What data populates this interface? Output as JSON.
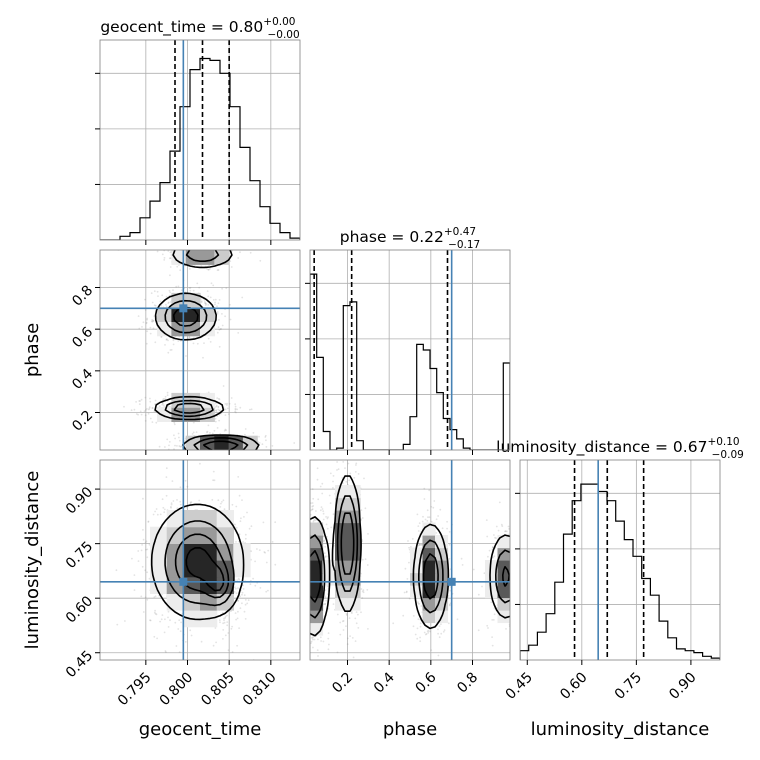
{
  "chart_data": {
    "type": "corner",
    "parameters": [
      {
        "key": "geocent_time",
        "label": "geocent_time",
        "range": [
          0.7895,
          0.8135
        ],
        "ticks": [
          0.795,
          0.8,
          0.805,
          0.81
        ],
        "tick_labels": [
          "0.795",
          "0.800",
          "0.805",
          "0.810"
        ],
        "truth": 0.7995,
        "quantiles": [
          0.7985,
          0.8018,
          0.805
        ]
      },
      {
        "key": "phase",
        "label": "phase",
        "range": [
          0.02,
          0.98
        ],
        "ticks": [
          0.2,
          0.4,
          0.6,
          0.8
        ],
        "tick_labels": [
          "0.2",
          "0.4",
          "0.6",
          "0.8"
        ],
        "truth": 0.7,
        "quantiles": [
          0.04,
          0.22,
          0.68
        ]
      },
      {
        "key": "luminosity_distance",
        "label": "luminosity_distance",
        "range": [
          0.43,
          0.98
        ],
        "ticks": [
          0.45,
          0.6,
          0.75,
          0.9
        ],
        "tick_labels": [
          "0.45",
          "0.60",
          "0.75",
          "0.90"
        ],
        "truth": 0.645,
        "quantiles": [
          0.58,
          0.67,
          0.77
        ]
      }
    ],
    "titles": [
      {
        "text": "geocent_time = 0.80",
        "sup": "+0.00",
        "sub": "−0.00"
      },
      {
        "text": "phase = 0.22",
        "sup": "+0.47",
        "sub": "−0.17"
      },
      {
        "text": "luminosity_distance = 0.67",
        "sup": "+0.10",
        "sub": "−0.09"
      }
    ],
    "histograms": {
      "geocent_time": [
        0,
        0,
        0.02,
        0.04,
        0.12,
        0.21,
        0.31,
        0.48,
        0.72,
        0.92,
        0.98,
        0.97,
        0.9,
        0.72,
        0.5,
        0.32,
        0.18,
        0.09,
        0.04,
        0.01
      ],
      "phase": [
        0.95,
        0.5,
        0.1,
        0.0,
        0.01,
        0.78,
        0.8,
        0.05,
        0.0,
        0.0,
        0.0,
        0.0,
        0.0,
        0.0,
        0.03,
        0.18,
        0.57,
        0.54,
        0.44,
        0.31,
        0.17,
        0.11,
        0.06,
        0.01,
        0.0,
        0.0,
        0.0,
        0.0,
        0.0,
        0.47
      ],
      "luminosity_distance": [
        0.05,
        0.08,
        0.15,
        0.25,
        0.42,
        0.68,
        0.86,
        0.95,
        0.95,
        0.91,
        0.86,
        0.75,
        0.65,
        0.56,
        0.44,
        0.35,
        0.21,
        0.12,
        0.06,
        0.05,
        0.04,
        0.02,
        0.01
      ],
      "ymax": 1.08
    },
    "modes": {
      "phase_geocent": [
        {
          "x": 0.8018,
          "y": 0.96,
          "sx": 0.002,
          "sy": 0.035,
          "w": 0.55
        },
        {
          "x": 0.7998,
          "y": 0.66,
          "sx": 0.0018,
          "sy": 0.055,
          "w": 0.9
        },
        {
          "x": 0.8002,
          "y": 0.22,
          "sx": 0.002,
          "sy": 0.025,
          "w": 1.0
        },
        {
          "x": 0.804,
          "y": 0.04,
          "sx": 0.0022,
          "sy": 0.025,
          "w": 1.0
        }
      ],
      "dist_geocent": [
        {
          "x": 0.8012,
          "y": 0.7,
          "sx": 0.0026,
          "sy": 0.075,
          "w": 1.0
        },
        {
          "x": 0.8038,
          "y": 0.64,
          "sx": 0.001,
          "sy": 0.035,
          "w": 0.6
        }
      ],
      "dist_phase": [
        {
          "x": 0.04,
          "y": 0.66,
          "sx": 0.035,
          "sy": 0.08,
          "w": 0.8
        },
        {
          "x": 0.2,
          "y": 0.75,
          "sx": 0.03,
          "sy": 0.09,
          "w": 0.9
        },
        {
          "x": 0.6,
          "y": 0.66,
          "sx": 0.04,
          "sy": 0.07,
          "w": 0.8
        },
        {
          "x": 0.96,
          "y": 0.66,
          "sx": 0.04,
          "sy": 0.06,
          "w": 0.6
        }
      ]
    },
    "colors": {
      "truth": "#4682b4",
      "hist": "#000000",
      "grid": "#b0b0b0",
      "scatter": "#808080"
    },
    "grid": true
  }
}
